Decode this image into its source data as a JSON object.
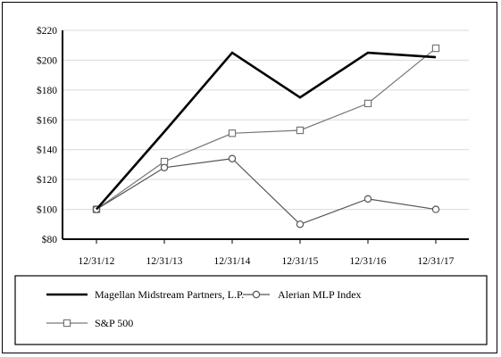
{
  "chart_data": {
    "type": "line",
    "categories": [
      "12/31/12",
      "12/31/13",
      "12/31/14",
      "12/31/15",
      "12/31/16",
      "12/31/17"
    ],
    "ylim": [
      80,
      220
    ],
    "yticks": [
      80,
      100,
      120,
      140,
      160,
      180,
      200,
      220
    ],
    "ytick_labels": [
      "$80",
      "$100",
      "$120",
      "$140",
      "$160",
      "$180",
      "$200",
      "$220"
    ],
    "grid": "horizontal",
    "legend_position": "bottom",
    "series": [
      {
        "name": "Magellan Midstream Partners, L.P.",
        "values": [
          100,
          152,
          205,
          175,
          205,
          202
        ],
        "color": "#000000",
        "marker": "none"
      },
      {
        "name": "Alerian MLP Index",
        "values": [
          100,
          128,
          134,
          90,
          107,
          100
        ],
        "color": "#555555",
        "marker": "circle"
      },
      {
        "name": "S&P 500",
        "values": [
          100,
          132,
          151,
          153,
          171,
          208
        ],
        "color": "#777777",
        "marker": "square"
      }
    ]
  }
}
